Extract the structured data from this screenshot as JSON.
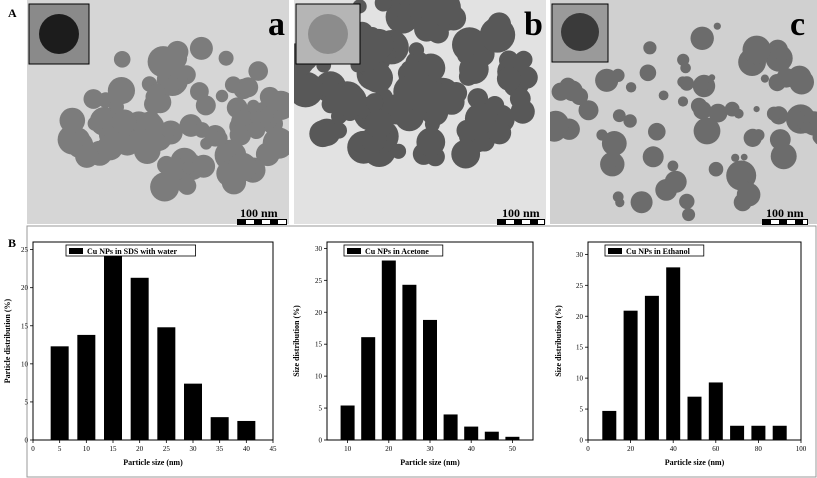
{
  "figure": {
    "row_a_label": "A",
    "row_b_label": "B"
  },
  "tem_images": [
    {
      "panel": "a",
      "scale": "100 nm"
    },
    {
      "panel": "b",
      "scale": "100 nm"
    },
    {
      "panel": "c",
      "scale": "100 nm"
    }
  ],
  "chart_data": [
    {
      "type": "bar",
      "legend": "Cu NPs in SDS with water",
      "xlabel": "Particle size (nm)",
      "ylabel": "Particle distribution (%)",
      "x": [
        5,
        10,
        15,
        20,
        25,
        30,
        35,
        40
      ],
      "values": [
        12.3,
        13.8,
        24.6,
        21.3,
        14.8,
        7.4,
        3.0,
        2.5
      ],
      "xlim": [
        0,
        45
      ],
      "ylim": [
        0,
        26
      ],
      "xticks": [
        "0",
        "5",
        "10",
        "15",
        "20",
        "25",
        "30",
        "35",
        "40",
        "45"
      ],
      "yticks": [
        "0",
        "5",
        "10",
        "15",
        "20",
        "25"
      ],
      "legend_position": "top-left"
    },
    {
      "type": "bar",
      "legend": "Cu NPs in Acetone",
      "xlabel": "Particle size (nm)",
      "ylabel": "Size distribution (%)",
      "x": [
        10,
        15,
        20,
        25,
        30,
        35,
        40,
        45,
        50
      ],
      "values": [
        5.4,
        16.1,
        28.1,
        24.3,
        18.8,
        4.0,
        2.1,
        1.3,
        0.5
      ],
      "xlim": [
        5,
        55
      ],
      "ylim": [
        0,
        31
      ],
      "xticks": [
        "10",
        "20",
        "30",
        "40",
        "50"
      ],
      "yticks": [
        "0",
        "5",
        "10",
        "15",
        "20",
        "25",
        "30"
      ],
      "legend_position": "top-left"
    },
    {
      "type": "bar",
      "legend": "Cu NPs in Ethanol",
      "xlabel": "Particle size (nm)",
      "ylabel": "Size distribution (%)",
      "x": [
        10,
        20,
        30,
        40,
        50,
        60,
        70,
        80,
        90
      ],
      "values": [
        4.7,
        20.9,
        23.3,
        27.9,
        7.0,
        9.3,
        2.3,
        2.3,
        2.3
      ],
      "xlim": [
        0,
        100
      ],
      "ylim": [
        0,
        32
      ],
      "xticks": [
        "0",
        "20",
        "40",
        "60",
        "80",
        "100"
      ],
      "yticks": [
        "0",
        "5",
        "10",
        "15",
        "20",
        "25",
        "30"
      ],
      "legend_position": "top-left"
    }
  ]
}
